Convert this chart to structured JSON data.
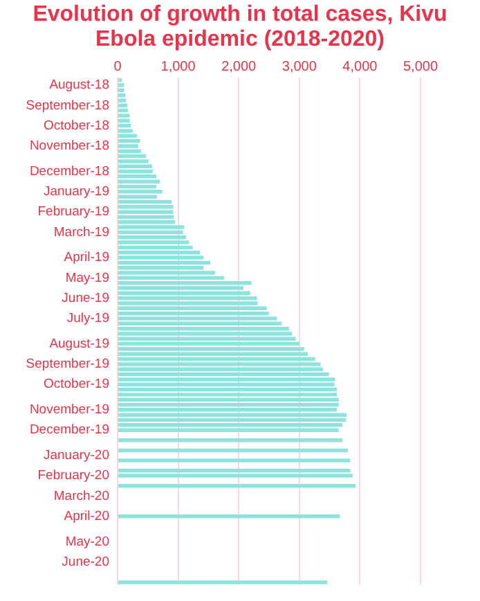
{
  "chart_data": {
    "type": "bar",
    "orientation": "horizontal",
    "title": "Evolution of growth in total cases, Kivu Ebola epidemic (2018-2020)",
    "categories": [
      null,
      "August-18",
      null,
      null,
      null,
      "September-18",
      null,
      null,
      null,
      "October-18",
      null,
      null,
      null,
      "November-18",
      null,
      null,
      null,
      null,
      "December-18",
      null,
      null,
      null,
      "January-19",
      null,
      null,
      null,
      "February-19",
      null,
      null,
      null,
      "March-19",
      null,
      null,
      null,
      null,
      "April-19",
      null,
      null,
      null,
      "May-19",
      null,
      null,
      null,
      "June-19",
      null,
      null,
      null,
      "July-19",
      null,
      null,
      null,
      null,
      "August-19",
      null,
      null,
      null,
      "September-19",
      null,
      null,
      null,
      "October-19",
      null,
      null,
      null,
      null,
      "November-19",
      null,
      null,
      null,
      "December-19",
      null,
      null,
      null,
      null,
      "January-20",
      null,
      null,
      null,
      "February-20",
      null,
      null,
      null,
      "March-20",
      null,
      null,
      null,
      "April-20",
      null,
      null,
      null,
      null,
      "May-20",
      null,
      null,
      null,
      "June-20",
      null,
      null,
      null,
      null
    ],
    "values": [
      70,
      110,
      110,
      130,
      140,
      160,
      170,
      200,
      200,
      220,
      250,
      320,
      370,
      340,
      390,
      470,
      510,
      570,
      580,
      640,
      700,
      640,
      740,
      650,
      890,
      920,
      920,
      930,
      950,
      1100,
      1080,
      1130,
      1180,
      1240,
      1360,
      1420,
      1530,
      1420,
      1610,
      1760,
      2210,
      2080,
      2190,
      2300,
      2310,
      2460,
      2500,
      2630,
      2710,
      2830,
      2880,
      2940,
      3000,
      3080,
      3140,
      3260,
      3350,
      3390,
      3490,
      3590,
      3580,
      3620,
      3620,
      3650,
      3650,
      3620,
      3780,
      3770,
      3710,
      3650,
      null,
      3710,
      null,
      3800,
      null,
      3840,
      null,
      3840,
      3880,
      null,
      3930,
      null,
      null,
      null,
      null,
      null,
      3670,
      null,
      null,
      null,
      null,
      null,
      null,
      null,
      null,
      null,
      null,
      null,
      null,
      3460
    ],
    "color": "#8ee3de",
    "xlim": [
      0,
      5000
    ],
    "xticks": [
      0,
      {
        "value": 1000,
        "label": "1,000"
      },
      {
        "value": 2000,
        "label": "2,000"
      },
      {
        "value": 3000,
        "label": "3,000"
      },
      {
        "value": 4000,
        "label": "4,000"
      },
      {
        "value": 5000,
        "label": "5,000"
      }
    ],
    "grid": "x"
  }
}
